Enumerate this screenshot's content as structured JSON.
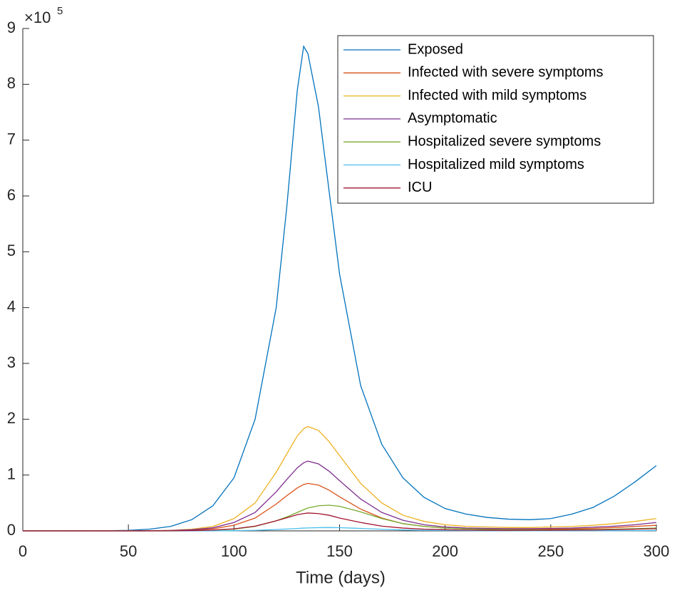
{
  "chart_data": {
    "type": "line",
    "xlabel": "Time (days)",
    "y_multiplier": {
      "base": "×10",
      "power": "5"
    },
    "xlim": [
      0,
      300
    ],
    "xticks": [
      0,
      50,
      100,
      150,
      200,
      250,
      300
    ],
    "ylim": [
      0,
      9
    ],
    "yticks": [
      0,
      1,
      2,
      3,
      4,
      5,
      6,
      7,
      8,
      9
    ],
    "legend": "upper right",
    "x": [
      0,
      20,
      40,
      50,
      60,
      70,
      80,
      90,
      100,
      110,
      120,
      125,
      130,
      133,
      135,
      140,
      145,
      150,
      160,
      170,
      180,
      190,
      200,
      210,
      220,
      230,
      240,
      250,
      260,
      270,
      280,
      290,
      300
    ],
    "series": [
      {
        "name": "Exposed",
        "color": "#0072BD",
        "values": [
          0,
          0.0005,
          0.003,
          0.01,
          0.03,
          0.08,
          0.2,
          0.45,
          0.95,
          2.0,
          4.0,
          5.8,
          7.9,
          8.68,
          8.55,
          7.6,
          6.1,
          4.6,
          2.6,
          1.55,
          0.95,
          0.6,
          0.4,
          0.3,
          0.24,
          0.21,
          0.2,
          0.22,
          0.3,
          0.42,
          0.62,
          0.88,
          1.17
        ]
      },
      {
        "name": "Infected with severe symptoms",
        "color": "#D95319",
        "values": [
          0,
          0,
          0,
          0,
          0.001,
          0.005,
          0.014,
          0.036,
          0.1,
          0.23,
          0.48,
          0.63,
          0.77,
          0.83,
          0.85,
          0.82,
          0.73,
          0.61,
          0.39,
          0.23,
          0.13,
          0.08,
          0.05,
          0.036,
          0.03,
          0.027,
          0.027,
          0.03,
          0.036,
          0.045,
          0.06,
          0.08,
          0.1
        ]
      },
      {
        "name": "Infected with mild symptoms",
        "color": "#EDB120",
        "values": [
          0,
          0,
          0,
          0.001,
          0.003,
          0.01,
          0.03,
          0.08,
          0.22,
          0.5,
          1.05,
          1.38,
          1.7,
          1.83,
          1.87,
          1.8,
          1.6,
          1.35,
          0.85,
          0.5,
          0.28,
          0.17,
          0.11,
          0.08,
          0.07,
          0.06,
          0.06,
          0.07,
          0.08,
          0.1,
          0.13,
          0.17,
          0.22
        ]
      },
      {
        "name": "Asymptomatic",
        "color": "#7E2F8E",
        "values": [
          0,
          0,
          0,
          0.001,
          0.002,
          0.007,
          0.02,
          0.055,
          0.15,
          0.33,
          0.7,
          0.92,
          1.13,
          1.22,
          1.25,
          1.2,
          1.07,
          0.9,
          0.57,
          0.33,
          0.19,
          0.11,
          0.07,
          0.05,
          0.045,
          0.04,
          0.04,
          0.045,
          0.05,
          0.065,
          0.085,
          0.11,
          0.15
        ]
      },
      {
        "name": "Hospitalized severe symptoms",
        "color": "#77AC30",
        "values": [
          0,
          0,
          0,
          0,
          0,
          0.001,
          0.003,
          0.01,
          0.03,
          0.08,
          0.18,
          0.25,
          0.33,
          0.38,
          0.41,
          0.45,
          0.46,
          0.44,
          0.34,
          0.22,
          0.13,
          0.08,
          0.05,
          0.035,
          0.025,
          0.02,
          0.018,
          0.018,
          0.02,
          0.024,
          0.03,
          0.04,
          0.05
        ]
      },
      {
        "name": "Hospitalized mild symptoms",
        "color": "#4DBEEE",
        "values": [
          0,
          0,
          0,
          0,
          0,
          0,
          0,
          0.001,
          0.004,
          0.01,
          0.024,
          0.033,
          0.043,
          0.05,
          0.053,
          0.058,
          0.06,
          0.057,
          0.044,
          0.029,
          0.017,
          0.01,
          0.007,
          0.005,
          0.003,
          0.003,
          0.002,
          0.002,
          0.003,
          0.003,
          0.004,
          0.005,
          0.007
        ]
      },
      {
        "name": "ICU",
        "color": "#A2142F",
        "values": [
          0,
          0,
          0,
          0,
          0.001,
          0.002,
          0.005,
          0.014,
          0.037,
          0.085,
          0.18,
          0.235,
          0.29,
          0.31,
          0.32,
          0.31,
          0.28,
          0.23,
          0.15,
          0.085,
          0.05,
          0.03,
          0.02,
          0.014,
          0.012,
          0.01,
          0.01,
          0.012,
          0.014,
          0.017,
          0.022,
          0.03,
          0.04
        ]
      }
    ]
  }
}
